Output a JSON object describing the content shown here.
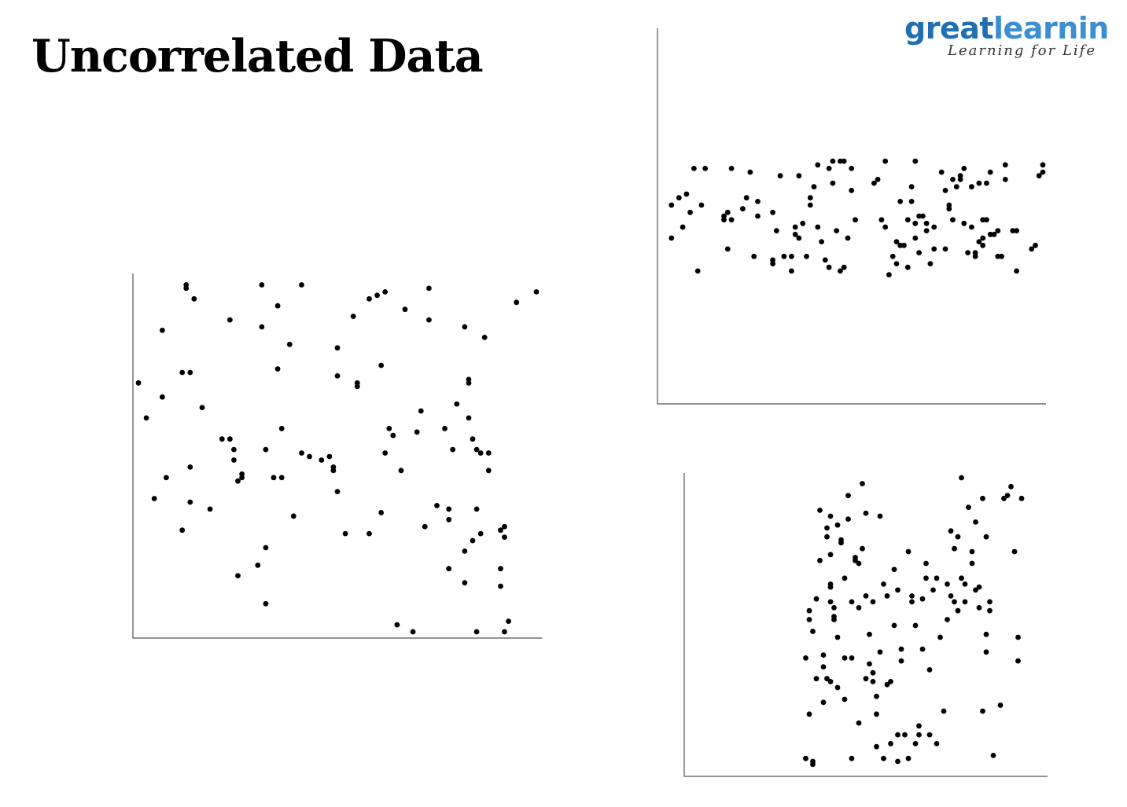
{
  "title": "Uncorrelated Data",
  "logo": {
    "part1": "great",
    "part2": "learnin",
    "tagline": "Learning for Life",
    "colors": {
      "great": "#1f6fb2",
      "learning": "#3a8fd3"
    }
  },
  "chart_data": [
    {
      "id": "main",
      "type": "scatter",
      "title": "",
      "xlabel": "",
      "ylabel": "",
      "axes": "left-bottom",
      "grid": false,
      "xlim": [
        0,
        100
      ],
      "ylim": [
        0,
        100
      ],
      "points": [
        [
          0,
          71
        ],
        [
          2,
          61
        ],
        [
          4,
          38
        ],
        [
          6,
          86
        ],
        [
          6,
          67
        ],
        [
          7,
          44
        ],
        [
          11,
          74
        ],
        [
          11,
          29
        ],
        [
          12,
          99
        ],
        [
          12,
          98
        ],
        [
          13,
          74
        ],
        [
          13,
          37
        ],
        [
          13,
          47
        ],
        [
          14,
          95
        ],
        [
          16,
          64
        ],
        [
          18,
          35
        ],
        [
          21,
          55
        ],
        [
          23,
          89
        ],
        [
          23,
          55
        ],
        [
          24,
          52
        ],
        [
          24,
          49
        ],
        [
          25,
          43
        ],
        [
          25,
          16
        ],
        [
          26,
          45
        ],
        [
          26,
          44
        ],
        [
          30,
          19
        ],
        [
          31,
          87
        ],
        [
          31,
          99
        ],
        [
          32,
          24
        ],
        [
          32,
          52
        ],
        [
          32,
          8
        ],
        [
          34,
          44
        ],
        [
          35,
          75
        ],
        [
          35,
          93
        ],
        [
          36,
          58
        ],
        [
          36,
          44
        ],
        [
          38,
          82
        ],
        [
          39,
          33
        ],
        [
          41,
          51
        ],
        [
          41,
          99
        ],
        [
          43,
          50
        ],
        [
          46,
          49
        ],
        [
          48,
          50
        ],
        [
          49,
          47
        ],
        [
          49,
          46
        ],
        [
          50,
          73
        ],
        [
          50,
          40
        ],
        [
          50,
          81
        ],
        [
          52,
          28
        ],
        [
          54,
          90
        ],
        [
          55,
          71
        ],
        [
          55,
          70
        ],
        [
          58,
          28
        ],
        [
          58,
          95
        ],
        [
          60,
          96
        ],
        [
          61,
          76
        ],
        [
          61,
          34
        ],
        [
          62,
          51
        ],
        [
          62,
          97
        ],
        [
          63,
          58
        ],
        [
          64,
          56
        ],
        [
          66,
          46
        ],
        [
          65,
          2
        ],
        [
          67,
          92
        ],
        [
          69,
          0
        ],
        [
          70,
          57
        ],
        [
          71,
          63
        ],
        [
          72,
          30
        ],
        [
          73,
          98
        ],
        [
          73,
          89
        ],
        [
          75,
          36
        ],
        [
          77,
          58
        ],
        [
          78,
          18
        ],
        [
          78,
          32
        ],
        [
          78,
          35
        ],
        [
          79,
          52
        ],
        [
          80,
          65
        ],
        [
          82,
          87
        ],
        [
          82,
          23
        ],
        [
          82,
          14
        ],
        [
          83,
          61
        ],
        [
          83,
          72
        ],
        [
          83,
          71
        ],
        [
          84,
          26
        ],
        [
          84,
          55
        ],
        [
          85,
          0
        ],
        [
          85,
          35
        ],
        [
          85,
          52
        ],
        [
          86,
          51
        ],
        [
          86,
          28
        ],
        [
          87,
          84
        ],
        [
          88,
          46
        ],
        [
          88,
          51
        ],
        [
          91,
          29
        ],
        [
          91,
          18
        ],
        [
          91,
          13
        ],
        [
          92,
          30
        ],
        [
          92,
          27
        ],
        [
          92,
          0
        ],
        [
          93,
          3
        ],
        [
          95,
          94
        ],
        [
          100,
          97
        ]
      ]
    },
    {
      "id": "top-right",
      "type": "scatter",
      "title": "",
      "xlabel": "",
      "ylabel": "",
      "axes": "left-bottom",
      "grid": false,
      "xlim": [
        0,
        100
      ],
      "ylim": [
        0,
        100
      ],
      "points": [
        [
          1,
          53
        ],
        [
          1,
          44
        ],
        [
          3,
          55
        ],
        [
          4,
          47
        ],
        [
          5,
          56
        ],
        [
          6,
          51
        ],
        [
          7,
          63
        ],
        [
          8,
          35
        ],
        [
          9,
          53
        ],
        [
          10,
          63
        ],
        [
          15,
          49
        ],
        [
          15,
          50
        ],
        [
          16,
          41
        ],
        [
          16,
          51
        ],
        [
          17,
          49
        ],
        [
          17,
          63
        ],
        [
          20,
          52
        ],
        [
          21,
          55
        ],
        [
          22,
          62
        ],
        [
          23,
          39
        ],
        [
          24,
          54
        ],
        [
          24,
          50
        ],
        [
          28,
          51
        ],
        [
          28,
          38
        ],
        [
          28,
          37
        ],
        [
          29,
          46
        ],
        [
          30,
          61
        ],
        [
          31,
          39
        ],
        [
          33,
          35
        ],
        [
          33,
          39
        ],
        [
          34,
          47
        ],
        [
          34,
          45
        ],
        [
          35,
          44
        ],
        [
          35,
          61
        ],
        [
          36,
          48
        ],
        [
          37,
          39
        ],
        [
          38,
          53
        ],
        [
          38,
          55
        ],
        [
          39,
          58
        ],
        [
          40,
          64
        ],
        [
          40,
          47
        ],
        [
          41,
          43
        ],
        [
          42,
          38
        ],
        [
          43,
          36
        ],
        [
          43,
          63
        ],
        [
          44,
          65
        ],
        [
          44,
          59
        ],
        [
          45,
          46
        ],
        [
          46,
          65
        ],
        [
          46,
          35
        ],
        [
          47,
          36
        ],
        [
          47,
          65
        ],
        [
          48,
          44
        ],
        [
          49,
          57
        ],
        [
          49,
          63
        ],
        [
          50,
          49
        ],
        [
          55,
          59
        ],
        [
          56,
          60
        ],
        [
          57,
          49
        ],
        [
          58,
          47
        ],
        [
          58,
          65
        ],
        [
          59,
          34
        ],
        [
          60,
          39
        ],
        [
          61,
          37
        ],
        [
          61,
          43
        ],
        [
          62,
          54
        ],
        [
          62,
          42
        ],
        [
          63,
          42
        ],
        [
          64,
          36
        ],
        [
          64,
          49
        ],
        [
          65,
          58
        ],
        [
          65,
          54
        ],
        [
          66,
          44
        ],
        [
          66,
          65
        ],
        [
          66,
          48
        ],
        [
          67,
          40
        ],
        [
          67,
          50
        ],
        [
          68,
          50
        ],
        [
          69,
          46
        ],
        [
          69,
          48
        ],
        [
          70,
          37
        ],
        [
          71,
          47
        ],
        [
          71,
          41
        ],
        [
          73,
          62
        ],
        [
          74,
          57
        ],
        [
          74,
          41
        ],
        [
          75,
          53
        ],
        [
          75,
          52
        ],
        [
          76,
          49
        ],
        [
          76,
          60
        ],
        [
          77,
          58
        ],
        [
          78,
          61
        ],
        [
          78,
          60
        ],
        [
          79,
          48
        ],
        [
          79,
          63
        ],
        [
          80,
          40
        ],
        [
          81,
          47
        ],
        [
          81,
          58
        ],
        [
          82,
          40
        ],
        [
          82,
          39
        ],
        [
          83,
          43
        ],
        [
          83,
          59
        ],
        [
          84,
          49
        ],
        [
          84,
          44
        ],
        [
          84,
          42
        ],
        [
          85,
          49
        ],
        [
          85,
          59
        ],
        [
          86,
          62
        ],
        [
          86,
          45
        ],
        [
          87,
          45
        ],
        [
          88,
          46
        ],
        [
          88,
          39
        ],
        [
          89,
          39
        ],
        [
          90,
          64
        ],
        [
          90,
          60
        ],
        [
          92,
          46
        ],
        [
          93,
          46
        ],
        [
          93,
          35
        ],
        [
          97,
          41
        ],
        [
          98,
          42
        ],
        [
          99,
          61
        ],
        [
          100,
          64
        ],
        [
          100,
          62
        ]
      ]
    },
    {
      "id": "bottom-right",
      "type": "scatter",
      "title": "",
      "xlabel": "",
      "ylabel": "",
      "axes": "left-bottom",
      "grid": false,
      "xlim": [
        0,
        100
      ],
      "ylim": [
        0,
        100
      ],
      "points": [
        [
          33,
          5
        ],
        [
          34,
          20
        ],
        [
          33,
          39
        ],
        [
          34,
          52
        ],
        [
          34,
          55
        ],
        [
          35,
          48
        ],
        [
          35,
          3
        ],
        [
          35,
          4
        ],
        [
          36,
          59
        ],
        [
          36,
          32
        ],
        [
          37,
          72
        ],
        [
          37,
          89
        ],
        [
          38,
          24
        ],
        [
          38,
          40
        ],
        [
          38,
          36
        ],
        [
          39,
          83
        ],
        [
          39,
          80
        ],
        [
          39,
          32
        ],
        [
          40,
          63
        ],
        [
          40,
          74
        ],
        [
          40,
          64
        ],
        [
          40,
          31
        ],
        [
          40,
          58
        ],
        [
          40,
          87
        ],
        [
          41,
          52
        ],
        [
          41,
          56
        ],
        [
          41,
          53
        ],
        [
          42,
          84
        ],
        [
          42,
          46
        ],
        [
          42,
          29
        ],
        [
          43,
          78
        ],
        [
          43,
          79
        ],
        [
          44,
          66
        ],
        [
          44,
          39
        ],
        [
          44,
          25
        ],
        [
          45,
          94
        ],
        [
          45,
          86
        ],
        [
          46,
          39
        ],
        [
          46,
          58
        ],
        [
          46,
          5
        ],
        [
          47,
          72
        ],
        [
          47,
          73
        ],
        [
          48,
          56
        ],
        [
          48,
          71
        ],
        [
          48,
          17
        ],
        [
          49,
          98
        ],
        [
          49,
          76
        ],
        [
          50,
          88
        ],
        [
          50,
          60
        ],
        [
          50,
          32
        ],
        [
          51,
          37
        ],
        [
          51,
          47
        ],
        [
          52,
          58
        ],
        [
          52,
          31
        ],
        [
          52,
          34
        ],
        [
          53,
          20
        ],
        [
          53,
          26
        ],
        [
          53,
          9
        ],
        [
          54,
          87
        ],
        [
          54,
          41
        ],
        [
          55,
          64
        ],
        [
          55,
          5
        ],
        [
          56,
          60
        ],
        [
          56,
          30
        ],
        [
          57,
          10
        ],
        [
          57,
          31
        ],
        [
          58,
          50
        ],
        [
          58,
          69
        ],
        [
          59,
          62
        ],
        [
          59,
          13
        ],
        [
          59,
          4
        ],
        [
          60,
          42
        ],
        [
          60,
          38
        ],
        [
          61,
          13
        ],
        [
          62,
          5
        ],
        [
          62,
          75
        ],
        [
          63,
          58
        ],
        [
          63,
          60
        ],
        [
          64,
          50
        ],
        [
          64,
          10
        ],
        [
          65,
          16
        ],
        [
          65,
          13
        ],
        [
          66,
          42
        ],
        [
          66,
          59
        ],
        [
          67,
          71
        ],
        [
          67,
          66
        ],
        [
          68,
          13
        ],
        [
          68,
          35
        ],
        [
          69,
          62
        ],
        [
          70,
          66
        ],
        [
          70,
          10
        ],
        [
          71,
          46
        ],
        [
          72,
          21
        ],
        [
          73,
          52
        ],
        [
          73,
          64
        ],
        [
          74,
          60
        ],
        [
          74,
          82
        ],
        [
          75,
          58
        ],
        [
          75,
          76
        ],
        [
          76,
          80
        ],
        [
          76,
          55
        ],
        [
          77,
          66
        ],
        [
          77,
          100
        ],
        [
          78,
          64
        ],
        [
          78,
          58
        ],
        [
          79,
          90
        ],
        [
          80,
          75
        ],
        [
          80,
          71
        ],
        [
          81,
          85
        ],
        [
          81,
          62
        ],
        [
          82,
          63
        ],
        [
          82,
          56
        ],
        [
          83,
          21
        ],
        [
          83,
          93
        ],
        [
          84,
          80
        ],
        [
          84,
          47
        ],
        [
          84,
          41
        ],
        [
          85,
          55
        ],
        [
          85,
          58
        ],
        [
          86,
          6
        ],
        [
          88,
          23
        ],
        [
          89,
          93
        ],
        [
          90,
          94
        ],
        [
          91,
          97
        ],
        [
          92,
          75
        ],
        [
          93,
          38
        ],
        [
          93,
          46
        ],
        [
          94,
          93
        ]
      ]
    }
  ]
}
